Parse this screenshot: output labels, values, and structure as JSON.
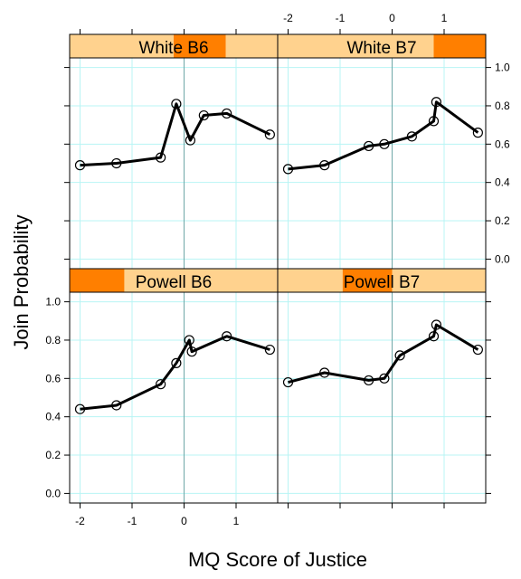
{
  "chart_data": {
    "type": "line",
    "layout": "lattice 2x2",
    "xlabel": "MQ Score of Justice",
    "ylabel": "Join Probability",
    "xlim": [
      -2.2,
      1.8
    ],
    "ylim": [
      -0.05,
      1.05
    ],
    "x_ticks": [
      -2,
      -1,
      0,
      1
    ],
    "x_tick_labels": [
      "-2",
      "-1",
      "0",
      "1"
    ],
    "y_ticks": [
      0.0,
      0.2,
      0.4,
      0.6,
      0.8,
      1.0
    ],
    "y_tick_labels": [
      "0.0",
      "0.2",
      "0.4",
      "0.6",
      "0.8",
      "1.0"
    ],
    "grid": true,
    "colors": {
      "strip_bg": "#ffd28e",
      "strip_shingle": "#ff7f00",
      "grid": "#b8f4f4",
      "zero_line": "#6fa7a7",
      "line": "#000000"
    },
    "panels": [
      {
        "title": "White B6",
        "shingle": [
          -0.2,
          0.8
        ],
        "x": [
          -2.0,
          -1.3,
          -0.45,
          -0.15,
          0.12,
          0.38,
          0.82,
          1.65
        ],
        "y": [
          0.49,
          0.5,
          0.53,
          0.81,
          0.62,
          0.75,
          0.76,
          0.65
        ]
      },
      {
        "title": "White B7",
        "shingle": [
          0.8,
          1.8
        ],
        "x": [
          -2.0,
          -1.3,
          -0.45,
          -0.15,
          0.38,
          0.8,
          0.85,
          1.65
        ],
        "y": [
          0.47,
          0.49,
          0.59,
          0.6,
          0.64,
          0.72,
          0.82,
          0.66
        ]
      },
      {
        "title": "Powell B6",
        "shingle": [
          -2.2,
          -1.15
        ],
        "x": [
          -2.0,
          -1.3,
          -0.45,
          -0.15,
          0.1,
          0.15,
          0.82,
          1.65
        ],
        "y": [
          0.44,
          0.46,
          0.57,
          0.68,
          0.8,
          0.74,
          0.82,
          0.75
        ]
      },
      {
        "title": "Powell B7",
        "shingle": [
          -0.95,
          0.0
        ],
        "x": [
          -2.0,
          -1.3,
          -0.45,
          -0.15,
          0.15,
          0.8,
          0.85,
          1.65
        ],
        "y": [
          0.58,
          0.63,
          0.59,
          0.6,
          0.72,
          0.82,
          0.88,
          0.75
        ]
      }
    ]
  }
}
